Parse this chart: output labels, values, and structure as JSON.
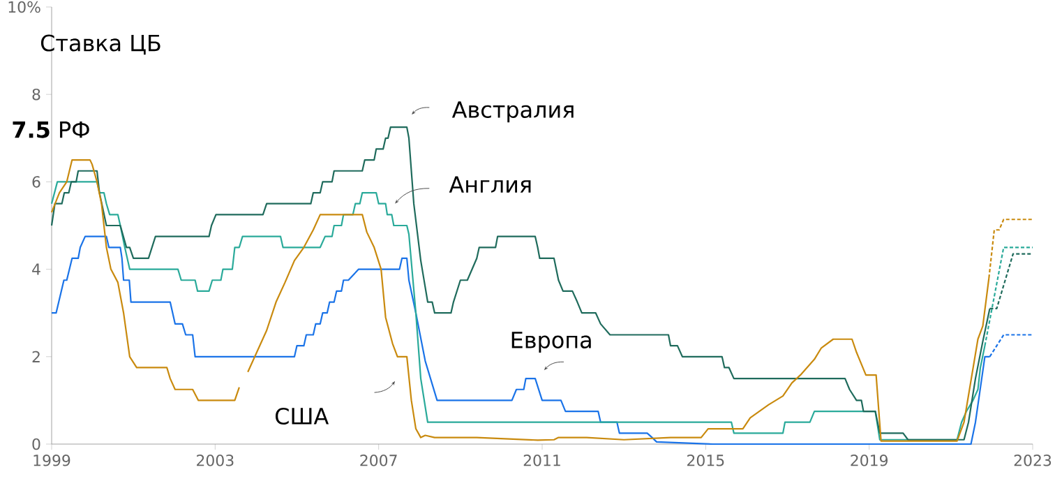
{
  "chart_data": {
    "type": "line",
    "title": "Ставка ЦБ",
    "xlim": [
      1999,
      2023
    ],
    "ylim": [
      0,
      10
    ],
    "xticks": [
      1999,
      2003,
      2007,
      2011,
      2015,
      2019,
      2023
    ],
    "yticks": [
      0,
      2,
      4,
      6,
      8,
      {
        "value": 10,
        "label": "10%"
      }
    ],
    "annotations": [
      "Австралия",
      "Англия",
      "Европа",
      "США",
      "**7.5** РФ"
    ],
    "series": [
      {
        "color": "#1a73e8",
        "line_style": "solid",
        "x": [
          1999.0,
          1999.11,
          1999.3,
          1999.37,
          1999.5,
          1999.65,
          1999.7,
          1999.82,
          2000.34,
          2000.4,
          2000.68,
          2000.72,
          2000.76,
          2000.9,
          2000.94,
          2001.9,
          2002.02,
          2002.2,
          2002.28,
          2002.45,
          2002.51,
          2004.94,
          2005.0,
          2005.17,
          2005.23,
          2005.4,
          2005.46,
          2005.57,
          2005.63,
          2005.74,
          2005.8,
          2005.91,
          2005.97,
          2006.09,
          2006.14,
          2006.26,
          2006.51,
          2007.51,
          2007.57,
          2007.69,
          2007.74,
          2007.91,
          2008.14,
          2008.43,
          2010.26,
          2010.37,
          2010.55,
          2010.6,
          2010.83,
          2011.0,
          2011.46,
          2011.57,
          2012.37,
          2012.43,
          2012.83,
          2012.89,
          2013.57,
          2013.69,
          2013.8,
          2015.17,
          2021.49,
          2021.6,
          2021.83,
          2021.95
        ],
        "values": [
          3.0,
          3.0,
          3.75,
          3.75,
          4.25,
          4.25,
          4.5,
          4.75,
          4.75,
          4.5,
          4.5,
          4.25,
          3.75,
          3.75,
          3.25,
          3.25,
          2.75,
          2.75,
          2.5,
          2.5,
          2.0,
          2.0,
          2.25,
          2.25,
          2.5,
          2.5,
          2.75,
          2.75,
          3.0,
          3.0,
          3.25,
          3.25,
          3.5,
          3.5,
          3.75,
          3.75,
          4.0,
          4.0,
          4.25,
          4.25,
          3.75,
          3.0,
          1.9,
          1.0,
          1.0,
          1.25,
          1.25,
          1.5,
          1.5,
          1.0,
          1.0,
          0.75,
          0.75,
          0.5,
          0.5,
          0.25,
          0.25,
          0.15,
          0.05,
          0.0,
          0.0,
          0.5,
          2.0,
          2.0
        ]
      },
      {
        "color": "#1a73e8",
        "line_style": "dashed",
        "x": [
          2021.95,
          2022.29,
          2023.0
        ],
        "values": [
          2.0,
          2.5,
          2.5
        ]
      },
      {
        "color": "#2aaa9a",
        "line_style": "solid",
        "x": [
          1999.0,
          1999.14,
          2000.11,
          2000.17,
          2000.28,
          2000.34,
          2000.42,
          2000.62,
          2000.68,
          2000.79,
          2000.91,
          2002.09,
          2002.17,
          2002.51,
          2002.57,
          2002.85,
          2002.93,
          2003.14,
          2003.19,
          2003.42,
          2003.48,
          2003.59,
          2003.67,
          2004.6,
          2004.66,
          2005.57,
          2005.69,
          2005.86,
          2005.91,
          2006.09,
          2006.14,
          2006.37,
          2006.43,
          2006.54,
          2006.6,
          2006.94,
          2007.0,
          2007.17,
          2007.21,
          2007.32,
          2007.37,
          2007.69,
          2007.74,
          2007.91,
          2008.03,
          2008.2,
          2015.63,
          2015.69,
          2016.89,
          2016.94,
          2017.55,
          2017.66,
          2019.15,
          2019.26,
          2021.15,
          2021.26,
          2021.38,
          2021.54,
          2021.66,
          2021.72,
          2021.83
        ],
        "values": [
          5.5,
          6.0,
          6.0,
          5.75,
          5.75,
          5.5,
          5.25,
          5.25,
          5.0,
          4.5,
          4.0,
          4.0,
          3.75,
          3.75,
          3.5,
          3.5,
          3.75,
          3.75,
          4.0,
          4.0,
          4.5,
          4.5,
          4.75,
          4.75,
          4.5,
          4.5,
          4.75,
          4.75,
          5.0,
          5.0,
          5.25,
          5.25,
          5.5,
          5.5,
          5.75,
          5.75,
          5.5,
          5.5,
          5.25,
          5.25,
          5.0,
          5.0,
          4.8,
          3.0,
          1.5,
          0.5,
          0.5,
          0.25,
          0.25,
          0.5,
          0.5,
          0.75,
          0.75,
          0.1,
          0.1,
          0.5,
          0.75,
          1.0,
          1.25,
          1.75,
          2.25
        ]
      },
      {
        "color": "#2aaa9a",
        "line_style": "dashed",
        "x": [
          2021.83,
          2022.29,
          2023.0
        ],
        "values": [
          2.25,
          4.5,
          4.5
        ]
      },
      {
        "color": "#1f6b5c",
        "line_style": "solid",
        "x": [
          1999.0,
          1999.08,
          1999.25,
          1999.31,
          1999.42,
          1999.48,
          1999.6,
          1999.65,
          2000.11,
          2000.17,
          2000.34,
          2000.68,
          2000.83,
          2000.91,
          2001.0,
          2001.37,
          2001.54,
          2002.85,
          2002.91,
          2003.02,
          2004.17,
          2004.26,
          2005.34,
          2005.4,
          2005.57,
          2005.63,
          2005.86,
          2005.91,
          2006.6,
          2006.66,
          2006.89,
          2006.94,
          2007.11,
          2007.17,
          2007.23,
          2007.29,
          2007.69,
          2007.74,
          2007.86,
          2008.03,
          2008.2,
          2008.31,
          2008.37,
          2008.77,
          2008.83,
          2009.0,
          2009.17,
          2009.4,
          2009.46,
          2009.86,
          2009.91,
          2010.83,
          2010.89,
          2010.94,
          2011.29,
          2011.4,
          2011.51,
          2011.74,
          2011.86,
          2011.97,
          2012.31,
          2012.43,
          2012.66,
          2014.09,
          2014.14,
          2014.31,
          2014.43,
          2015.4,
          2015.46,
          2015.57,
          2015.69,
          2018.41,
          2018.52,
          2018.69,
          2018.81,
          2018.86,
          2019.15,
          2019.26,
          2019.83,
          2019.95,
          2021.32,
          2021.43,
          2021.6,
          2021.78,
          2021.95
        ],
        "values": [
          5.0,
          5.5,
          5.5,
          5.75,
          5.75,
          6.0,
          6.0,
          6.25,
          6.25,
          5.75,
          5.0,
          5.0,
          4.5,
          4.5,
          4.25,
          4.25,
          4.75,
          4.75,
          5.0,
          5.25,
          5.25,
          5.5,
          5.5,
          5.75,
          5.75,
          6.0,
          6.0,
          6.25,
          6.25,
          6.5,
          6.5,
          6.75,
          6.75,
          7.0,
          7.0,
          7.25,
          7.25,
          7.0,
          5.5,
          4.2,
          3.25,
          3.25,
          3.0,
          3.0,
          3.25,
          3.75,
          3.75,
          4.25,
          4.5,
          4.5,
          4.75,
          4.75,
          4.5,
          4.25,
          4.25,
          3.75,
          3.5,
          3.5,
          3.25,
          3.0,
          3.0,
          2.75,
          2.5,
          2.5,
          2.25,
          2.25,
          2.0,
          2.0,
          1.75,
          1.75,
          1.5,
          1.5,
          1.25,
          1.0,
          1.0,
          0.75,
          0.75,
          0.25,
          0.25,
          0.1,
          0.1,
          0.5,
          1.5,
          2.35,
          3.1
        ]
      },
      {
        "color": "#1f6b5c",
        "line_style": "dashed",
        "x": [
          2021.95,
          2022.12,
          2022.52,
          2023.0
        ],
        "values": [
          3.1,
          3.1,
          4.35,
          4.35
        ]
      },
      {
        "color": "#c98a0e",
        "line_style": "solid",
        "x": [
          1999.0,
          1999.19,
          1999.37,
          1999.5,
          1999.94,
          1999.99,
          2000.11,
          2000.22,
          2000.34,
          2000.45,
          2000.62,
          2000.76,
          2000.91,
          2001.08,
          2001.82,
          2001.9,
          2002.02,
          2002.45,
          2002.59,
          2003.48,
          2003.59,
          2003.7,
          2003.8,
          2004.26,
          2004.49,
          2004.71,
          2004.94,
          2005.17,
          2005.4,
          2005.57,
          2006.6,
          2006.71,
          2006.89,
          2007.06,
          2007.17,
          2007.34,
          2007.46,
          2007.69,
          2007.8,
          2007.91,
          2008.03,
          2008.14,
          2008.37,
          2009.4,
          2010.89,
          2011.29,
          2011.4,
          2012.09,
          2013.0,
          2014.14,
          2014.89,
          2015.06,
          2015.91,
          2016.09,
          2016.54,
          2016.89,
          2017.11,
          2017.34,
          2017.66,
          2017.83,
          2018.12,
          2018.58,
          2018.69,
          2018.92,
          2019.17,
          2019.29,
          2021.15,
          2021.32,
          2021.66,
          2021.78,
          2021.93
        ],
        "values": [
          5.3,
          5.75,
          6.0,
          6.5,
          6.5,
          6.4,
          6.0,
          5.5,
          4.5,
          4.0,
          3.7,
          3.0,
          2.0,
          1.75,
          1.75,
          1.5,
          1.25,
          1.25,
          1.0,
          1.0,
          1.3,
          null,
          1.65,
          2.6,
          3.25,
          3.7,
          4.2,
          4.5,
          4.9,
          5.25,
          5.25,
          4.85,
          4.5,
          4.0,
          2.9,
          2.3,
          2.0,
          2.0,
          1.0,
          0.35,
          0.15,
          0.2,
          0.15,
          0.15,
          0.09,
          0.1,
          0.15,
          0.15,
          0.1,
          0.15,
          0.15,
          0.35,
          0.35,
          0.6,
          0.9,
          1.1,
          1.4,
          1.6,
          1.94,
          2.2,
          2.4,
          2.4,
          2.1,
          1.58,
          1.58,
          0.07,
          0.07,
          0.5,
          2.4,
          2.7,
          3.8
        ]
      },
      {
        "color": "#c98a0e",
        "line_style": "dashed",
        "x": [
          2021.93,
          2022.06,
          2022.18,
          2022.29,
          2023.0
        ],
        "values": [
          3.8,
          4.9,
          4.9,
          5.14,
          5.14
        ]
      }
    ]
  }
}
